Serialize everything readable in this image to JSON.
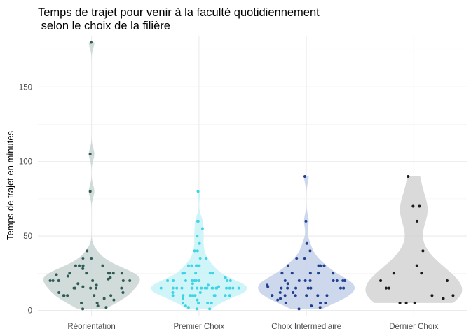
{
  "chart_data": {
    "type": "violin",
    "title_lines": [
      "Temps de trajet pour venir à la faculté quotidiennement",
      " selon le choix de la filière"
    ],
    "xlabel": "",
    "ylabel": "Temps de trajet en minutes",
    "ylim": [
      -4,
      184
    ],
    "yticks": [
      0,
      50,
      100,
      150
    ],
    "grid": true,
    "legend": "none",
    "categories": [
      "Réorientation",
      "Premier Choix",
      "Choix Intermediaire",
      "Dernier Choix"
    ],
    "series": [
      {
        "category": "Réorientation",
        "fill": "#c9d6d4",
        "point_color": "#2f5b55",
        "points": [
          180,
          105,
          80,
          40,
          35,
          35,
          30,
          30,
          30,
          30,
          28,
          25,
          25,
          25,
          25,
          25,
          25,
          24,
          23,
          22,
          21,
          20,
          20,
          20,
          20,
          20,
          20,
          18,
          17,
          16,
          15,
          15,
          15,
          15,
          15,
          12,
          12,
          10,
          10,
          10,
          10,
          10,
          8,
          7,
          5,
          5,
          3,
          2,
          1
        ]
      },
      {
        "category": "Premier Choix",
        "fill": "#c8f3f8",
        "point_color": "#3fd3e5",
        "points": [
          80,
          60,
          60,
          55,
          50,
          50,
          45,
          40,
          40,
          35,
          35,
          30,
          30,
          30,
          30,
          30,
          25,
          25,
          25,
          25,
          25,
          25,
          22,
          20,
          20,
          20,
          20,
          20,
          20,
          20,
          20,
          20,
          18,
          17,
          16,
          15,
          15,
          15,
          15,
          15,
          15,
          15,
          15,
          15,
          15,
          15,
          15,
          15,
          15,
          15,
          15,
          15,
          15,
          12,
          12,
          10,
          10,
          10,
          10,
          10,
          10,
          10,
          10,
          10,
          10,
          8,
          7,
          5,
          5,
          5,
          5,
          3,
          2,
          1,
          1
        ]
      },
      {
        "category": "Choix Intermediaire",
        "fill": "#c6d1ea",
        "point_color": "#1f3f8f",
        "points": [
          90,
          60,
          45,
          40,
          35,
          35,
          30,
          30,
          30,
          30,
          25,
          25,
          25,
          25,
          25,
          20,
          20,
          20,
          20,
          20,
          20,
          20,
          20,
          18,
          17,
          16,
          15,
          15,
          15,
          15,
          15,
          15,
          15,
          12,
          12,
          10,
          10,
          10,
          10,
          10,
          10,
          10,
          8,
          7,
          5,
          5,
          5,
          3,
          2,
          1
        ]
      },
      {
        "category": "Dernier Choix",
        "fill": "#d3d3d3",
        "point_color": "#1a1a1a",
        "points": [
          90,
          70,
          70,
          60,
          40,
          30,
          25,
          25,
          20,
          20,
          15,
          15,
          10,
          10,
          8,
          5,
          5,
          5
        ]
      }
    ]
  }
}
